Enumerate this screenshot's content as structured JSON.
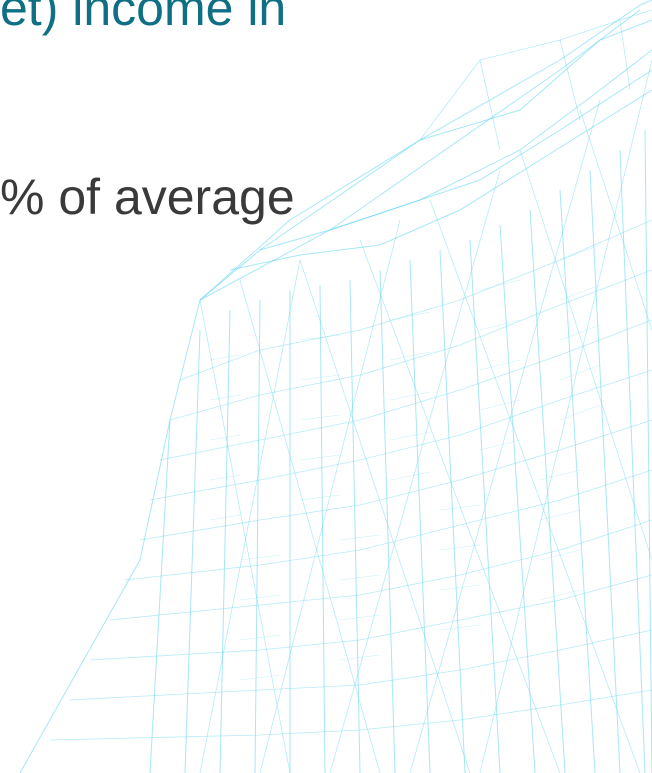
{
  "slide": {
    "title_fragment": "et) income in",
    "body_fragment": "% of average"
  },
  "colors": {
    "title": "#0f6f84",
    "body_text": "#3a3a3a",
    "wireframe": "#5fd3f0",
    "background": "#ffffff"
  },
  "decoration": {
    "icon": "wireframe-skyscraper-illustration"
  }
}
